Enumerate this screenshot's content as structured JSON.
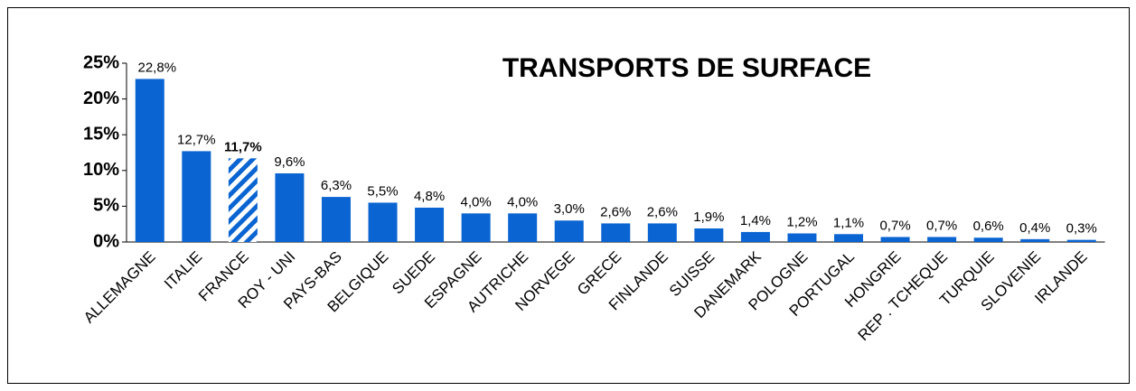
{
  "chart_data": {
    "type": "bar",
    "title": "TRANSPORTS DE SURFACE",
    "categories": [
      "ALLEMAGNE",
      "ITALIE",
      "FRANCE",
      "ROY - UNI",
      "PAYS-BAS",
      "BELGIQUE",
      "SUEDE",
      "ESPAGNE",
      "AUTRICHE",
      "NORVEGE",
      "GRECE",
      "FINLANDE",
      "SUISSE",
      "DANEMARK",
      "POLOGNE",
      "PORTUGAL",
      "HONGRIE",
      "REP . TCHEQUE",
      "TURQUIE",
      "SLOVENIE",
      "IRLANDE"
    ],
    "values": [
      22.8,
      12.7,
      11.7,
      9.6,
      6.3,
      5.5,
      4.8,
      4.0,
      4.0,
      3.0,
      2.6,
      2.6,
      1.9,
      1.4,
      1.2,
      1.1,
      0.7,
      0.7,
      0.6,
      0.4,
      0.3
    ],
    "value_labels": [
      "22,8%",
      "12,7%",
      "11,7%",
      "9,6%",
      "6,3%",
      "5,5%",
      "4,8%",
      "4,0%",
      "4,0%",
      "3,0%",
      "2,6%",
      "2,6%",
      "1,9%",
      "1,4%",
      "1,2%",
      "1,1%",
      "0,7%",
      "0,7%",
      "0,6%",
      "0,4%",
      "0,3%"
    ],
    "color": "#0a64d2",
    "highlight": [
      2
    ],
    "ylim": [
      0,
      25
    ],
    "yticks": [
      {
        "value": 0,
        "label": "0%"
      },
      {
        "value": 5,
        "label": "5%"
      },
      {
        "value": 10,
        "label": "10%"
      },
      {
        "value": 15,
        "label": "15%"
      },
      {
        "value": 20,
        "label": "20%"
      },
      {
        "value": 25,
        "label": "25%"
      }
    ],
    "grid": false
  }
}
